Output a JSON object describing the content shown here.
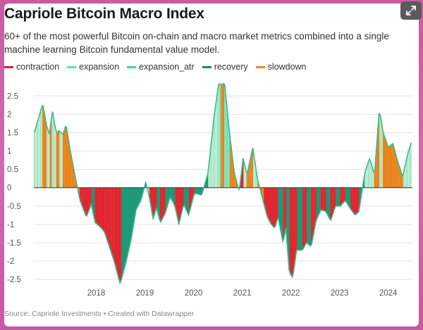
{
  "title": "Capriole Bitcoin Macro Index",
  "subtitle": "60+ of the most powerful Bitcoin on-chain and macro market metrics combined into a single machine learning Bitcoin fundamental value model.",
  "source": "Source: Capriole Investments • Created with Datawrapper",
  "icons": {
    "expand": "expand-icon"
  },
  "legend": [
    {
      "label": "contraction",
      "color": "#e01f2a"
    },
    {
      "label": "expansion",
      "color": "#53e3b0"
    },
    {
      "label": "expansion_atr",
      "color": "#3fd6a2"
    },
    {
      "label": "recovery",
      "color": "#13876b"
    },
    {
      "label": "slowdown",
      "color": "#f08c1c"
    }
  ],
  "chart_data": {
    "type": "area",
    "title": "Capriole Bitcoin Macro Index",
    "xlabel": "",
    "ylabel": "",
    "xlim": [
      2017.2,
      2024.98
    ],
    "ylim": [
      -2.65,
      2.85
    ],
    "yticks": [
      2.5,
      2,
      1.5,
      1,
      0.5,
      0,
      -0.5,
      -1,
      -1.5,
      -2,
      -2.5
    ],
    "ytick_labels": [
      "2.5",
      "2",
      "1.5",
      "1",
      "0.5",
      "0",
      "-0.5",
      "-1",
      "-1.5",
      "-2",
      "-2.5"
    ],
    "xticks": [
      2018,
      2019,
      2020,
      2021,
      2022,
      2023,
      2024
    ],
    "xtick_labels": [
      "2018",
      "2019",
      "2020",
      "2021",
      "2022",
      "2023",
      "2024"
    ],
    "grid": true,
    "phases": [
      "contraction",
      "expansion",
      "expansion_atr",
      "recovery",
      "slowdown"
    ],
    "x": [
      2017.21,
      2017.32,
      2017.38,
      2017.46,
      2017.52,
      2017.58,
      2017.66,
      2017.72,
      2017.8,
      2017.86,
      2017.95,
      2018.05,
      2018.15,
      2018.28,
      2018.38,
      2018.46,
      2018.55,
      2018.65,
      2018.75,
      2018.85,
      2018.92,
      2018.97,
      2019.0,
      2019.1,
      2019.2,
      2019.3,
      2019.4,
      2019.5,
      2019.58,
      2019.65,
      2019.72,
      2019.8,
      2019.9,
      2020.0,
      2020.1,
      2020.18,
      2020.28,
      2020.38,
      2020.5,
      2020.65,
      2020.78,
      2020.9,
      2021.0,
      2021.05,
      2021.12,
      2021.22,
      2021.32,
      2021.42,
      2021.5,
      2021.58,
      2021.7,
      2021.8,
      2021.92,
      2022.0,
      2022.08,
      2022.15,
      2022.22,
      2022.32,
      2022.38,
      2022.45,
      2022.52,
      2022.6,
      2022.72,
      2022.8,
      2022.9,
      2023.0,
      2023.1,
      2023.2,
      2023.3,
      2023.4,
      2023.5,
      2023.6,
      2023.72,
      2023.8,
      2023.88,
      2024.0,
      2024.1,
      2024.2,
      2024.3,
      2024.38,
      2024.48,
      2024.58,
      2024.68,
      2024.78,
      2024.88,
      2024.96
    ],
    "y": [
      1.5,
      2.0,
      2.28,
      1.7,
      1.45,
      2.1,
      1.5,
      1.55,
      1.45,
      1.72,
      1.0,
      0.3,
      -0.35,
      -0.8,
      -0.45,
      -0.95,
      -1.05,
      -1.2,
      -1.6,
      -2.0,
      -2.35,
      -2.6,
      -2.5,
      -2.0,
      -1.4,
      -0.6,
      -0.35,
      0.15,
      -0.3,
      -0.85,
      -0.55,
      -0.95,
      -0.7,
      -0.25,
      -0.5,
      -1.0,
      -0.45,
      -0.75,
      -0.15,
      -0.2,
      0.4,
      1.9,
      2.85,
      2.8,
      2.85,
      1.5,
      0.4,
      -0.1,
      0.8,
      0.35,
      1.1,
      0.2,
      -0.4,
      -0.8,
      -1.0,
      -1.1,
      -0.8,
      -1.5,
      -1.1,
      -2.3,
      -2.45,
      -1.7,
      -1.7,
      -1.5,
      -1.6,
      -0.9,
      -0.6,
      -0.65,
      -0.9,
      -0.5,
      -0.5,
      -0.35,
      -0.6,
      -0.75,
      -0.65,
      0.4,
      0.8,
      0.35,
      2.12,
      1.5,
      1.1,
      1.2,
      0.7,
      0.3,
      0.9,
      1.25
    ],
    "phase": [
      "expansion",
      "expansion",
      "slowdown",
      "expansion",
      "slowdown",
      "expansion",
      "slowdown",
      "expansion",
      "slowdown",
      "slowdown",
      "slowdown",
      "slowdown",
      "contraction",
      "contraction",
      "recovery",
      "contraction",
      "contraction",
      "contraction",
      "contraction",
      "contraction",
      "contraction",
      "contraction",
      "recovery",
      "recovery",
      "recovery",
      "recovery",
      "recovery",
      "expansion",
      "contraction",
      "contraction",
      "recovery",
      "contraction",
      "recovery",
      "recovery",
      "contraction",
      "contraction",
      "recovery",
      "contraction",
      "recovery",
      "recovery",
      "expansion",
      "expansion",
      "expansion_atr",
      "slowdown",
      "expansion_atr",
      "slowdown",
      "slowdown",
      "contraction",
      "expansion",
      "slowdown",
      "expansion",
      "slowdown",
      "contraction",
      "contraction",
      "contraction",
      "contraction",
      "recovery",
      "contraction",
      "recovery",
      "contraction",
      "contraction",
      "recovery",
      "contraction",
      "recovery",
      "contraction",
      "recovery",
      "contraction",
      "recovery",
      "contraction",
      "recovery",
      "contraction",
      "recovery",
      "contraction",
      "contraction",
      "recovery",
      "expansion",
      "expansion",
      "slowdown",
      "expansion",
      "slowdown",
      "slowdown",
      "slowdown",
      "slowdown",
      "expansion",
      "expansion",
      "expansion"
    ]
  }
}
